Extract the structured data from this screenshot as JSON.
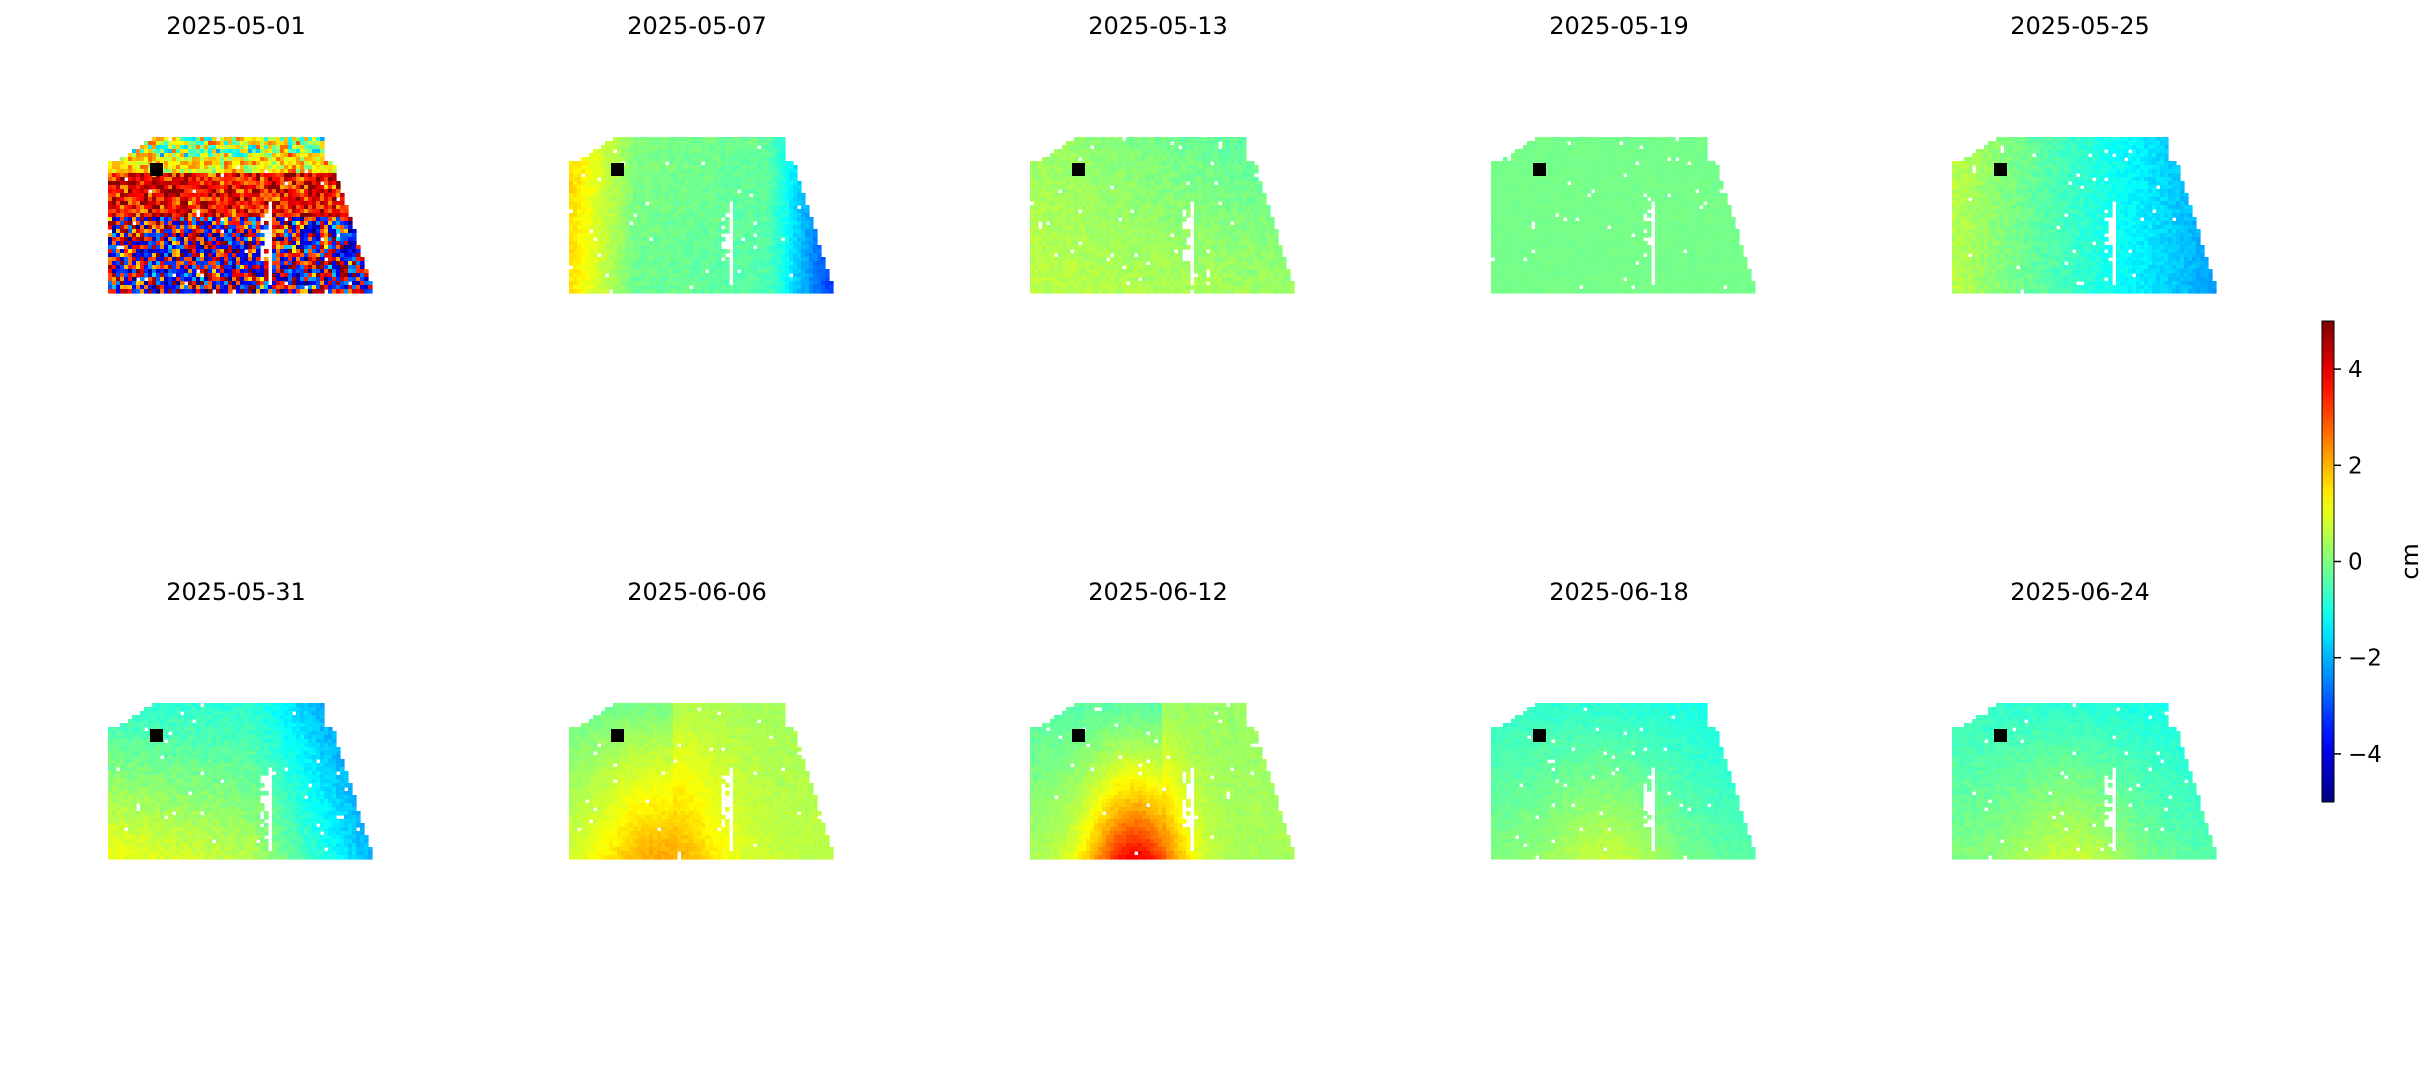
{
  "chart_data": {
    "type": "heatmap",
    "panels": [
      {
        "date": "2025-05-01",
        "pattern": "noisy"
      },
      {
        "date": "2025-05-07",
        "pattern": "east_down_west_up"
      },
      {
        "date": "2025-05-13",
        "pattern": "mild"
      },
      {
        "date": "2025-05-19",
        "pattern": "flat"
      },
      {
        "date": "2025-05-25",
        "pattern": "east_down"
      },
      {
        "date": "2025-05-31",
        "pattern": "east_down_south_up"
      },
      {
        "date": "2025-06-06",
        "pattern": "south_up"
      },
      {
        "date": "2025-06-12",
        "pattern": "south_strong_up"
      },
      {
        "date": "2025-06-18",
        "pattern": "mild_south_up"
      },
      {
        "date": "2025-06-24",
        "pattern": "mild_south_up"
      }
    ],
    "colorbar": {
      "label": "cm",
      "colormap": "jet",
      "range": [
        -5,
        5
      ],
      "ticks": [
        4,
        2,
        0,
        -2,
        -4
      ],
      "tick_labels": [
        "4",
        "2",
        "0",
        "−2",
        "−4"
      ]
    },
    "reference_point": {
      "shown": true,
      "color": "#000000"
    },
    "colors": {
      "nodata": "#ffffff",
      "reference": "#000000"
    }
  }
}
